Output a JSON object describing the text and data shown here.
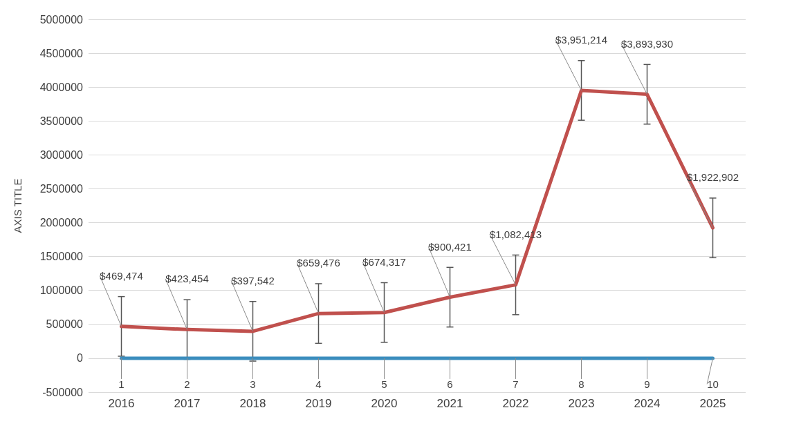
{
  "chart_data": {
    "type": "line",
    "ylabel": "AXIS TITLE",
    "categories": [
      "2016",
      "2017",
      "2018",
      "2019",
      "2020",
      "2021",
      "2022",
      "2023",
      "2024",
      "2025"
    ],
    "series": [
      {
        "color": "#c0504d",
        "values": [
          469474,
          423454,
          397542,
          659476,
          674317,
          900421,
          1082413,
          3951214,
          3893930,
          1922902
        ],
        "value_labels": [
          "$469,474",
          "$423,454",
          "$397,542",
          "$659,476",
          "$674,317",
          "$900,421",
          "$1,082,413",
          "$3,951,214",
          "$3,893,930",
          "$1,922,902"
        ],
        "errors": [
          440000,
          440000,
          440000,
          440000,
          440000,
          440000,
          440000,
          440000,
          440000,
          440000
        ]
      },
      {
        "color": "#3b8dbd",
        "values": [
          1,
          2,
          3,
          4,
          5,
          6,
          7,
          8,
          9,
          10
        ],
        "data_labels": true
      }
    ],
    "ylim": [
      -500000,
      5000000
    ],
    "yticks": [
      -500000,
      0,
      500000,
      1000000,
      1500000,
      2000000,
      2500000,
      3000000,
      3500000,
      4000000,
      4500000,
      5000000
    ],
    "grid": "y",
    "marker": "none",
    "line_style": "solid"
  }
}
